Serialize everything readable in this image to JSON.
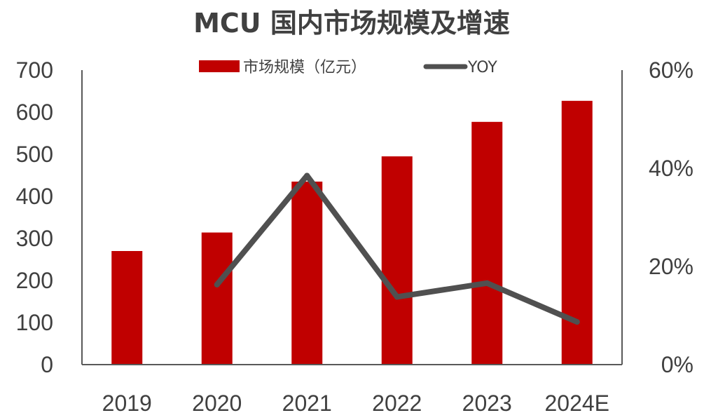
{
  "chart_data": {
    "type": "bar",
    "title": "MCU 国内市场规模及增速",
    "categories": [
      "2019",
      "2020",
      "2021",
      "2022",
      "2023",
      "2024E"
    ],
    "series": [
      {
        "name": "市场规模（亿元）",
        "type": "bar",
        "axis": "left",
        "color": "#C00000",
        "values": [
          270,
          314,
          435,
          495,
          577,
          627
        ]
      },
      {
        "name": "YOY",
        "type": "line",
        "axis": "right",
        "color": "#505050",
        "values": [
          null,
          16.3,
          38.5,
          13.8,
          16.6,
          8.7
        ]
      }
    ],
    "y_left": {
      "min": 0,
      "max": 700,
      "ticks": [
        "0",
        "100",
        "200",
        "300",
        "400",
        "500",
        "600",
        "700"
      ]
    },
    "y_right": {
      "min": 0,
      "max": 60,
      "ticks": [
        "0%",
        "20%",
        "40%",
        "60%"
      ]
    },
    "legend": "top-center",
    "grid": false
  }
}
